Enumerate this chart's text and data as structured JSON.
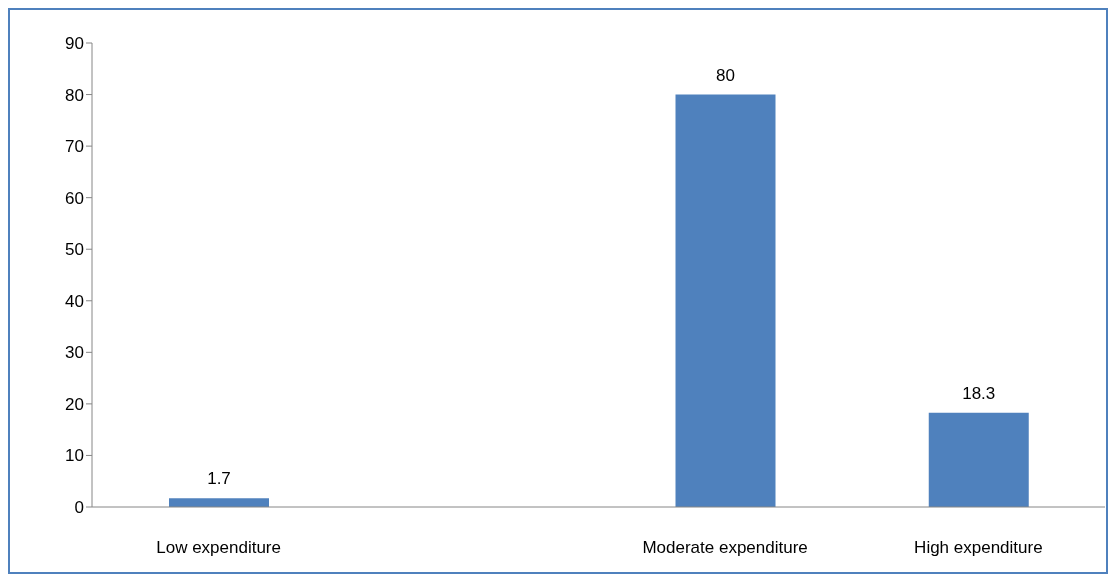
{
  "chart_data": {
    "type": "bar",
    "categories": [
      "Low expenditure",
      null,
      "Moderate expenditure",
      "High expenditure"
    ],
    "values": [
      1.7,
      null,
      80,
      18.3
    ],
    "color": "#4f81bd",
    "ylim": [
      0,
      90
    ],
    "yticks": [
      0,
      10,
      20,
      30,
      40,
      50,
      60,
      70,
      80,
      90
    ],
    "grid": false,
    "data_labels": true
  }
}
